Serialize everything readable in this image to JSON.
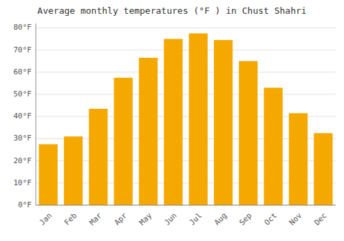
{
  "chart_data": {
    "type": "bar",
    "title": "Average monthly temperatures (°F ) in Chust Shahri",
    "categories": [
      "Jan",
      "Feb",
      "Mar",
      "Apr",
      "May",
      "Jun",
      "Jul",
      "Aug",
      "Sep",
      "Oct",
      "Nov",
      "Dec"
    ],
    "values": [
      27.5,
      31.0,
      43.5,
      57.5,
      66.5,
      75.0,
      77.5,
      74.5,
      65.0,
      53.0,
      41.5,
      32.5
    ],
    "color": "#F5A800",
    "ylim": [
      0,
      82
    ],
    "yticks": [
      {
        "value": 0,
        "label": "0°F"
      },
      {
        "value": 10,
        "label": "10°F"
      },
      {
        "value": 20,
        "label": "20°F"
      },
      {
        "value": 30,
        "label": "30°F"
      },
      {
        "value": 40,
        "label": "40°F"
      },
      {
        "value": 50,
        "label": "50°F"
      },
      {
        "value": 60,
        "label": "60°F"
      },
      {
        "value": 70,
        "label": "70°F"
      },
      {
        "value": 80,
        "label": "80°F"
      }
    ],
    "grid": true
  }
}
